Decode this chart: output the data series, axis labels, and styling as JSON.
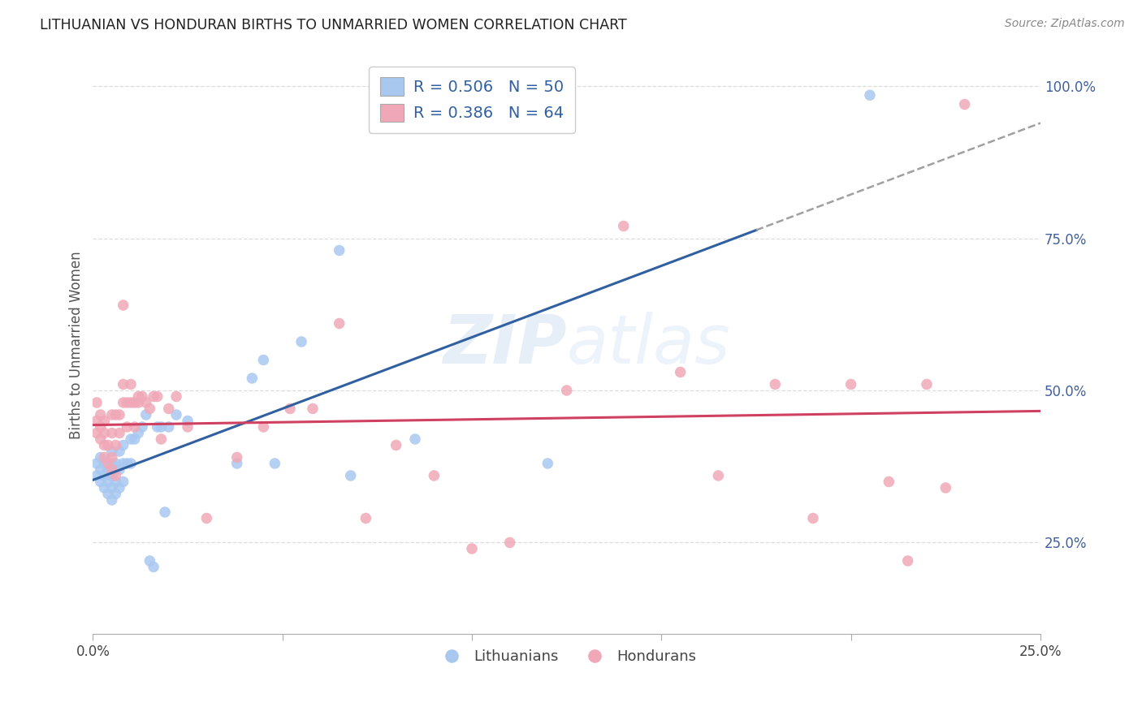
{
  "title": "LITHUANIAN VS HONDURAN BIRTHS TO UNMARRIED WOMEN CORRELATION CHART",
  "source": "Source: ZipAtlas.com",
  "ylabel": "Births to Unmarried Women",
  "legend1_label": "R = 0.506   N = 50",
  "legend2_label": "R = 0.386   N = 64",
  "legend_bottom": [
    "Lithuanians",
    "Hondurans"
  ],
  "blue_color": "#A8C8F0",
  "pink_color": "#F0A8B8",
  "blue_line_color": "#3060A0",
  "pink_line_color": "#D04060",
  "dashed_line_color": "#A0A0A0",
  "watermark": "ZIPatlas",
  "background_color": "#FFFFFF",
  "grid_color": "#DDDDDD",
  "tick_label_color": "#4060A0",
  "xmin": 0.0,
  "xmax": 0.25,
  "ymin": 0.1,
  "ymax": 1.05,
  "lit_x": [
    0.001,
    0.001,
    0.002,
    0.002,
    0.002,
    0.003,
    0.003,
    0.003,
    0.004,
    0.004,
    0.004,
    0.005,
    0.005,
    0.005,
    0.005,
    0.005,
    0.006,
    0.006,
    0.006,
    0.007,
    0.007,
    0.007,
    0.008,
    0.008,
    0.008,
    0.009,
    0.01,
    0.01,
    0.011,
    0.012,
    0.013,
    0.014,
    0.015,
    0.016,
    0.017,
    0.018,
    0.019,
    0.02,
    0.022,
    0.025,
    0.038,
    0.042,
    0.045,
    0.048,
    0.055,
    0.065,
    0.068,
    0.085,
    0.12,
    0.205
  ],
  "lit_y": [
    0.36,
    0.38,
    0.35,
    0.37,
    0.39,
    0.34,
    0.36,
    0.38,
    0.33,
    0.35,
    0.37,
    0.32,
    0.34,
    0.36,
    0.38,
    0.4,
    0.33,
    0.35,
    0.38,
    0.34,
    0.37,
    0.4,
    0.35,
    0.38,
    0.41,
    0.38,
    0.38,
    0.42,
    0.42,
    0.43,
    0.44,
    0.46,
    0.22,
    0.21,
    0.44,
    0.44,
    0.3,
    0.44,
    0.46,
    0.45,
    0.38,
    0.52,
    0.55,
    0.38,
    0.58,
    0.73,
    0.36,
    0.42,
    0.38,
    0.985
  ],
  "hon_x": [
    0.001,
    0.001,
    0.001,
    0.002,
    0.002,
    0.002,
    0.003,
    0.003,
    0.003,
    0.003,
    0.004,
    0.004,
    0.005,
    0.005,
    0.005,
    0.005,
    0.006,
    0.006,
    0.006,
    0.007,
    0.007,
    0.008,
    0.008,
    0.008,
    0.009,
    0.009,
    0.01,
    0.01,
    0.011,
    0.011,
    0.012,
    0.012,
    0.013,
    0.014,
    0.015,
    0.016,
    0.017,
    0.018,
    0.02,
    0.022,
    0.025,
    0.03,
    0.038,
    0.045,
    0.052,
    0.058,
    0.065,
    0.072,
    0.08,
    0.09,
    0.1,
    0.11,
    0.125,
    0.14,
    0.155,
    0.165,
    0.18,
    0.19,
    0.2,
    0.21,
    0.215,
    0.22,
    0.225,
    0.23
  ],
  "hon_y": [
    0.43,
    0.45,
    0.48,
    0.42,
    0.44,
    0.46,
    0.39,
    0.41,
    0.43,
    0.45,
    0.38,
    0.41,
    0.37,
    0.39,
    0.43,
    0.46,
    0.36,
    0.41,
    0.46,
    0.43,
    0.46,
    0.64,
    0.48,
    0.51,
    0.44,
    0.48,
    0.48,
    0.51,
    0.44,
    0.48,
    0.48,
    0.49,
    0.49,
    0.48,
    0.47,
    0.49,
    0.49,
    0.42,
    0.47,
    0.49,
    0.44,
    0.29,
    0.39,
    0.44,
    0.47,
    0.47,
    0.61,
    0.29,
    0.41,
    0.36,
    0.24,
    0.25,
    0.5,
    0.77,
    0.53,
    0.36,
    0.51,
    0.29,
    0.51,
    0.35,
    0.22,
    0.51,
    0.34,
    0.97
  ]
}
